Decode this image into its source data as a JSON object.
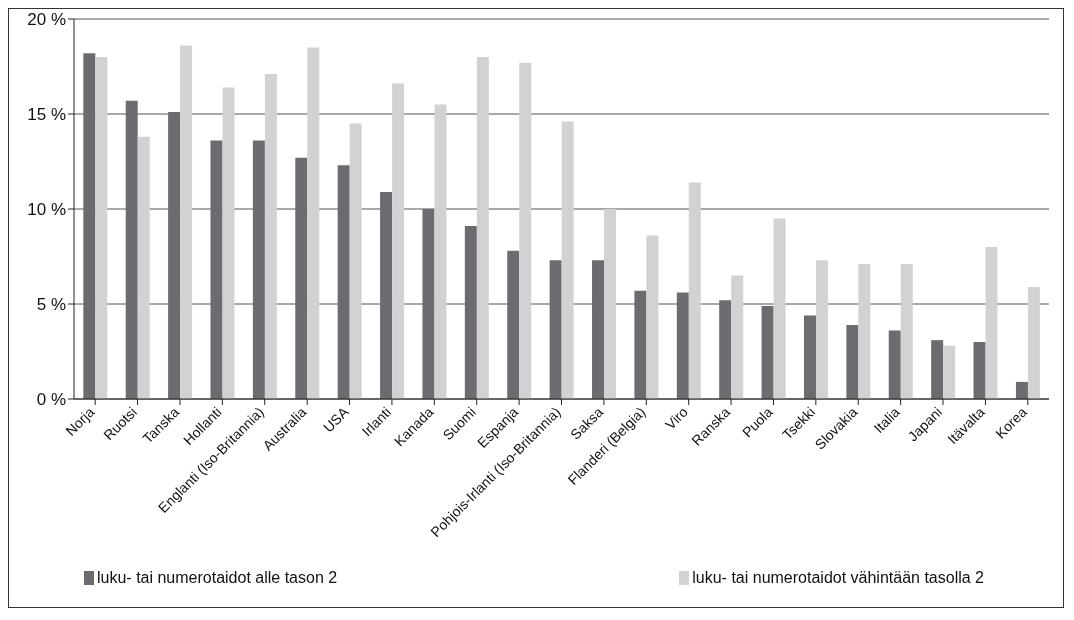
{
  "chart_data": {
    "type": "bar",
    "categories": [
      "Norja",
      "Ruotsi",
      "Tanska",
      "Hollanti",
      "Englanti (Iso-Britannia)",
      "Australia",
      "USA",
      "Irlanti",
      "Kanada",
      "Suomi",
      "Espanja",
      "Pohjois-Irlanti (Iso-Britannia)",
      "Saksa",
      "Flanderi (Belgia)",
      "Viro",
      "Ranska",
      "Puola",
      "Tsekki",
      "Slovakia",
      "Italia",
      "Japani",
      "Itävalta",
      "Korea"
    ],
    "series": [
      {
        "name": "luku- tai numerotaidot alle tason 2",
        "color": "#6b6c70",
        "values": [
          18.2,
          15.7,
          15.1,
          13.6,
          13.6,
          12.7,
          12.3,
          10.9,
          10.0,
          9.1,
          7.8,
          7.3,
          7.3,
          5.7,
          5.6,
          5.2,
          4.9,
          4.4,
          3.9,
          3.6,
          3.1,
          3.0,
          0.9
        ]
      },
      {
        "name": "luku- tai numerotaidot vähintään tasolla 2",
        "color": "#d1d2d4",
        "values": [
          18.0,
          13.8,
          18.6,
          16.4,
          17.1,
          18.5,
          14.5,
          16.6,
          15.5,
          18.0,
          17.7,
          14.6,
          10.0,
          8.6,
          11.4,
          6.5,
          9.5,
          7.3,
          7.1,
          7.1,
          2.8,
          8.0,
          5.9
        ]
      }
    ],
    "ylim": [
      0,
      20
    ],
    "yticks": [
      {
        "value": 0,
        "label": "0 %"
      },
      {
        "value": 5,
        "label": "5 %"
      },
      {
        "value": 10,
        "label": "10 %"
      },
      {
        "value": 15,
        "label": "15 %"
      },
      {
        "value": 20,
        "label": "20 %"
      }
    ],
    "grid": "y",
    "legend": "bottom"
  }
}
